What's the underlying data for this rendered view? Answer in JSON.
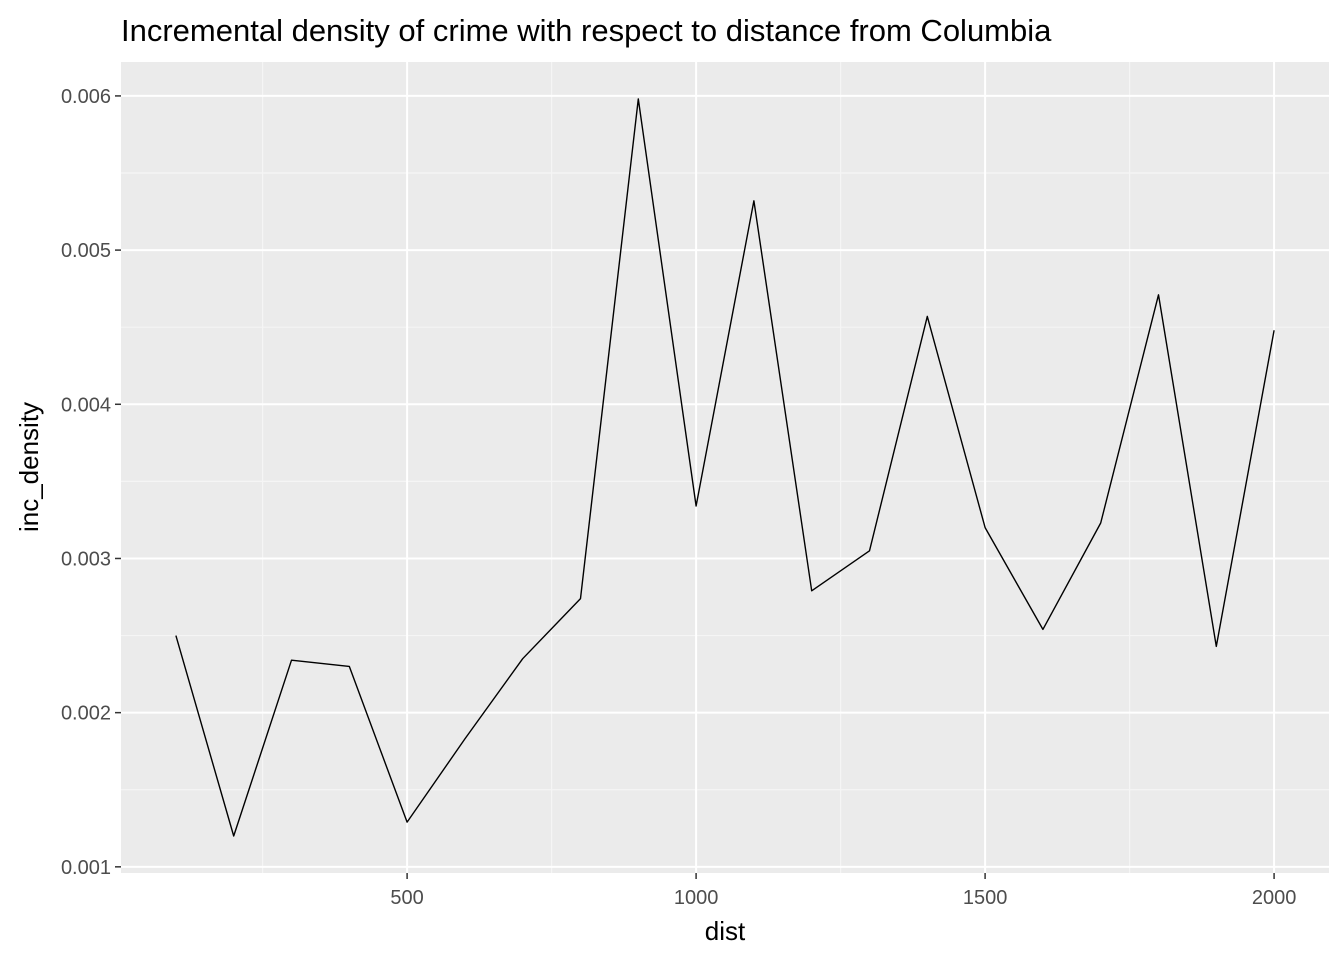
{
  "chart_data": {
    "type": "line",
    "title": "Incremental density of crime with respect to distance from Columbia",
    "xlabel": "dist",
    "ylabel": "inc_density",
    "x": [
      100,
      200,
      300,
      400,
      500,
      600,
      700,
      800,
      900,
      1000,
      1100,
      1200,
      1300,
      1400,
      1500,
      1600,
      1700,
      1800,
      1900,
      2000
    ],
    "y": [
      0.0025,
      0.0012,
      0.00234,
      0.0023,
      0.00129,
      0.00183,
      0.00235,
      0.00274,
      0.00598,
      0.00334,
      0.00532,
      0.00279,
      0.00305,
      0.00457,
      0.0032,
      0.00254,
      0.00323,
      0.00471,
      0.00243,
      0.00448
    ],
    "xlim": [
      5,
      2095
    ],
    "ylim": [
      0.00096,
      0.00622
    ],
    "x_ticks": [
      500,
      1000,
      1500,
      2000
    ],
    "x_tick_labels": [
      "500",
      "1000",
      "1500",
      "2000"
    ],
    "y_ticks": [
      0.001,
      0.002,
      0.003,
      0.004,
      0.005,
      0.006
    ],
    "y_tick_labels": [
      "0.001",
      "0.002",
      "0.003",
      "0.004",
      "0.005",
      "0.006"
    ],
    "grid": true,
    "legend": "none",
    "colors": {
      "panel_background": "#EBEBEB",
      "grid_major": "#FFFFFF",
      "grid_minor": "#F5F5F5",
      "line": "#000000",
      "tick": "#333333"
    }
  }
}
